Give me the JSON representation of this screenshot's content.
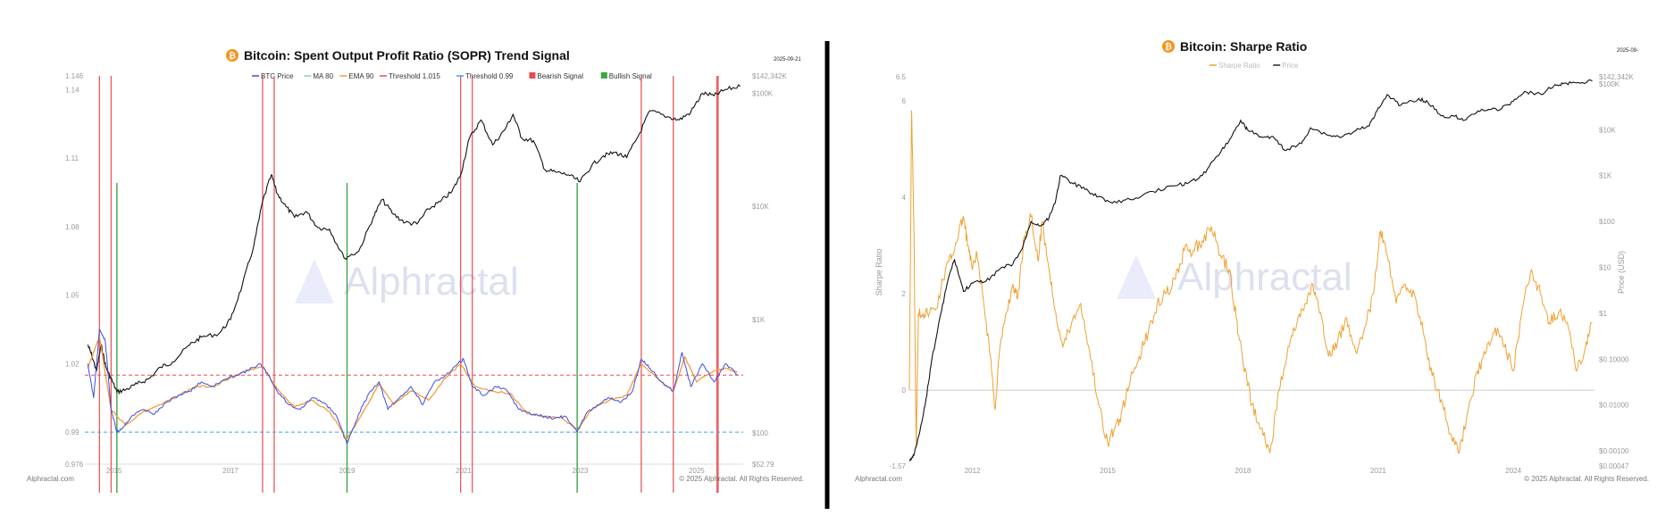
{
  "chart_data": [
    {
      "type": "line",
      "title": "Bitcoin: Spent Output Profit Ratio (SOPR) Trend Signal",
      "date_label": "2025-09-21",
      "legend": [
        {
          "label": "BTC Price",
          "color": "#3b4fe0",
          "kind": "line"
        },
        {
          "label": "MA 80",
          "color": "#7fd3c0",
          "kind": "line"
        },
        {
          "label": "EMA 90",
          "color": "#f59a3a",
          "kind": "line"
        },
        {
          "label": "Threshold 1.015",
          "color": "#ef4d4d",
          "kind": "line"
        },
        {
          "label": "Threshold 0.99",
          "color": "#3aa3e0",
          "kind": "line"
        },
        {
          "label": "Bearish Signal",
          "color": "#e84c4c",
          "kind": "box"
        },
        {
          "label": "Bullish Signal",
          "color": "#3aa64a",
          "kind": "box"
        }
      ],
      "x_range": [
        2014.5,
        2025.8
      ],
      "x_ticks": [
        {
          "v": 2015,
          "label": "2015"
        },
        {
          "v": 2017,
          "label": "2017"
        },
        {
          "v": 2019,
          "label": "2019"
        },
        {
          "v": 2021,
          "label": "2021"
        },
        {
          "v": 2023,
          "label": "2023"
        },
        {
          "v": 2025,
          "label": "2025"
        }
      ],
      "y_left_range": [
        0.976,
        1.146
      ],
      "y_left_ticks": [
        {
          "v": 1.146,
          "label": "1.146"
        },
        {
          "v": 1.14,
          "label": "1.14"
        },
        {
          "v": 1.11,
          "label": "1.11"
        },
        {
          "v": 1.08,
          "label": "1.08"
        },
        {
          "v": 1.05,
          "label": "1.05"
        },
        {
          "v": 1.02,
          "label": "1.02"
        },
        {
          "v": 0.99,
          "label": "0.99"
        },
        {
          "v": 0.976,
          "label": "0.976"
        }
      ],
      "y_right_log": true,
      "y_right_range": [
        52.79,
        142342
      ],
      "y_right_ticks": [
        {
          "v": 142342,
          "label": "$142,342K"
        },
        {
          "v": 100000,
          "label": "$100K"
        },
        {
          "v": 10000,
          "label": "$10K"
        },
        {
          "v": 1000,
          "label": "$1K"
        },
        {
          "v": 100,
          "label": "$100"
        },
        {
          "v": 52.79,
          "label": "$52.79"
        }
      ],
      "thresholds": [
        {
          "name": "Threshold 1.015",
          "value": 1.015,
          "color": "#ef4d4d"
        },
        {
          "name": "Threshold 0.99",
          "value": 0.99,
          "color": "#3aa3e0"
        }
      ],
      "bearish_signals": [
        2014.75,
        2014.95,
        2017.55,
        2017.75,
        2020.95,
        2021.15,
        2024.05,
        2024.6,
        2025.35,
        2025.37
      ],
      "bullish_signals": [
        2015.05,
        2019.0,
        2022.95
      ],
      "btc_price": {
        "x": [
          2014.55,
          2014.62,
          2014.7,
          2014.78,
          2014.86,
          2014.95,
          2015.05,
          2015.2,
          2015.4,
          2015.6,
          2015.8,
          2016.0,
          2016.3,
          2016.5,
          2016.8,
          2017.0,
          2017.2,
          2017.4,
          2017.55,
          2017.7,
          2017.8,
          2017.95,
          2018.1,
          2018.3,
          2018.5,
          2018.7,
          2018.95,
          2019.2,
          2019.45,
          2019.6,
          2019.8,
          2020.0,
          2020.2,
          2020.4,
          2020.6,
          2020.8,
          2020.95,
          2021.1,
          2021.3,
          2021.5,
          2021.7,
          2021.85,
          2022.0,
          2022.2,
          2022.4,
          2022.6,
          2022.8,
          2023.0,
          2023.2,
          2023.4,
          2023.6,
          2023.8,
          2024.0,
          2024.2,
          2024.5,
          2024.7,
          2024.9,
          2025.1,
          2025.3,
          2025.5,
          2025.75
        ],
        "y": [
          600,
          480,
          350,
          600,
          380,
          300,
          230,
          240,
          270,
          300,
          380,
          420,
          600,
          700,
          750,
          1000,
          2000,
          4500,
          11000,
          19000,
          13000,
          10000,
          8000,
          9000,
          6500,
          6300,
          3500,
          4000,
          8000,
          11500,
          8500,
          7200,
          7000,
          9500,
          11000,
          13500,
          19000,
          40000,
          58000,
          35000,
          47000,
          65000,
          40000,
          38000,
          21000,
          20000,
          19000,
          16500,
          23000,
          28000,
          30000,
          27000,
          42000,
          70000,
          62000,
          58000,
          68000,
          100000,
          95000,
          108000,
          115000
        ]
      },
      "sopr": {
        "x": [
          2014.55,
          2014.65,
          2014.75,
          2014.85,
          2014.95,
          2015.05,
          2015.15,
          2015.3,
          2015.5,
          2015.7,
          2015.9,
          2016.1,
          2016.3,
          2016.5,
          2016.7,
          2016.9,
          2017.1,
          2017.3,
          2017.5,
          2017.65,
          2017.8,
          2018.0,
          2018.2,
          2018.4,
          2018.6,
          2018.8,
          2019.0,
          2019.2,
          2019.4,
          2019.55,
          2019.7,
          2019.9,
          2020.1,
          2020.3,
          2020.5,
          2020.7,
          2020.9,
          2021.0,
          2021.15,
          2021.35,
          2021.55,
          2021.75,
          2021.95,
          2022.15,
          2022.35,
          2022.55,
          2022.75,
          2022.95,
          2023.1,
          2023.3,
          2023.5,
          2023.7,
          2023.9,
          2024.05,
          2024.2,
          2024.4,
          2024.6,
          2024.75,
          2024.9,
          2025.1,
          2025.3,
          2025.5,
          2025.7
        ],
        "y": [
          1.02,
          1.005,
          1.035,
          1.03,
          1.0,
          0.99,
          0.992,
          0.997,
          1.0,
          0.998,
          1.003,
          1.006,
          1.008,
          1.012,
          1.01,
          1.013,
          1.015,
          1.017,
          1.02,
          1.015,
          1.008,
          1.002,
          1.0,
          1.005,
          1.003,
          0.998,
          0.985,
          0.998,
          1.008,
          1.012,
          1.0,
          1.005,
          1.01,
          1.002,
          1.012,
          1.015,
          1.02,
          1.022,
          1.01,
          1.006,
          1.01,
          1.008,
          1.0,
          0.998,
          0.997,
          0.996,
          0.997,
          0.99,
          0.998,
          1.002,
          1.005,
          1.003,
          1.008,
          1.022,
          1.018,
          1.012,
          1.008,
          1.025,
          1.01,
          1.02,
          1.012,
          1.02,
          1.015
        ]
      },
      "ema90": {
        "x": [
          2014.55,
          2014.75,
          2014.95,
          2015.2,
          2015.5,
          2015.8,
          2016.1,
          2016.4,
          2016.7,
          2017.0,
          2017.3,
          2017.55,
          2017.8,
          2018.1,
          2018.4,
          2018.7,
          2019.0,
          2019.3,
          2019.55,
          2019.8,
          2020.1,
          2020.4,
          2020.7,
          2020.95,
          2021.2,
          2021.5,
          2021.8,
          2022.1,
          2022.4,
          2022.7,
          2022.95,
          2023.2,
          2023.5,
          2023.8,
          2024.05,
          2024.35,
          2024.6,
          2024.8,
          2025.0,
          2025.3,
          2025.5,
          2025.7
        ],
        "y": [
          1.018,
          1.032,
          1.0,
          0.993,
          0.999,
          1.002,
          1.006,
          1.01,
          1.01,
          1.014,
          1.017,
          1.019,
          1.009,
          1.001,
          1.004,
          0.999,
          0.987,
          1.0,
          1.011,
          1.002,
          1.008,
          1.004,
          1.014,
          1.02,
          1.01,
          1.008,
          1.007,
          0.998,
          0.997,
          0.996,
          0.991,
          1.0,
          1.004,
          1.006,
          1.02,
          1.013,
          1.008,
          1.023,
          1.012,
          1.017,
          1.018,
          1.016
        ]
      },
      "watermark": "Alphractal",
      "footer_left": "Alphractal.com",
      "footer_right": "© 2025 Alphractal. All Rights Reserved."
    },
    {
      "type": "line",
      "title": "Bitcoin: Sharpe Ratio",
      "date_label": "2025-09-",
      "legend": [
        {
          "label": "Sharpe Ratio",
          "color": "#f0a030",
          "kind": "line"
        },
        {
          "label": "Price",
          "color": "#222222",
          "kind": "line"
        }
      ],
      "ylabel_left": "Sharpe Ratio",
      "ylabel_right": "Price (USD)",
      "x_range": [
        2010.6,
        2025.8
      ],
      "x_ticks": [
        {
          "v": 2012,
          "label": "2012"
        },
        {
          "v": 2015,
          "label": "2015"
        },
        {
          "v": 2018,
          "label": "2018"
        },
        {
          "v": 2021,
          "label": "2021"
        },
        {
          "v": 2024,
          "label": "2024"
        }
      ],
      "y_left_range": [
        -1.57,
        6.5
      ],
      "y_left_ticks": [
        {
          "v": 6.5,
          "label": "6.5"
        },
        {
          "v": 6,
          "label": "6"
        },
        {
          "v": 4,
          "label": "4"
        },
        {
          "v": 2,
          "label": "2"
        },
        {
          "v": 0,
          "label": "0"
        },
        {
          "v": -1.57,
          "label": "-1.57"
        }
      ],
      "zero_line": 0,
      "y_right_log": true,
      "y_right_range": [
        0.00047,
        142342
      ],
      "y_right_ticks": [
        {
          "v": 142342,
          "label": "$142,342K"
        },
        {
          "v": 100000,
          "label": "$100K"
        },
        {
          "v": 10000,
          "label": "$10K"
        },
        {
          "v": 1000,
          "label": "$1K"
        },
        {
          "v": 100,
          "label": "$100"
        },
        {
          "v": 10,
          "label": "$10"
        },
        {
          "v": 1,
          "label": "$1"
        },
        {
          "v": 0.1,
          "label": "$0.10000"
        },
        {
          "v": 0.01,
          "label": "$0.01000"
        },
        {
          "v": 0.001,
          "label": "$0.00100"
        },
        {
          "v": 0.00047,
          "label": "$0.00047"
        }
      ],
      "sharpe": {
        "x": [
          2010.6,
          2010.65,
          2010.7,
          2010.75,
          2010.8,
          2010.9,
          2011.0,
          2011.2,
          2011.4,
          2011.55,
          2011.7,
          2011.8,
          2011.9,
          2012.0,
          2012.1,
          2012.25,
          2012.4,
          2012.5,
          2012.6,
          2012.75,
          2012.9,
          2013.0,
          2013.15,
          2013.3,
          2013.45,
          2013.55,
          2013.7,
          2013.85,
          2014.0,
          2014.2,
          2014.4,
          2014.6,
          2014.8,
          2015.0,
          2015.15,
          2015.3,
          2015.5,
          2015.7,
          2015.9,
          2016.1,
          2016.3,
          2016.5,
          2016.7,
          2016.9,
          2017.1,
          2017.3,
          2017.5,
          2017.7,
          2017.85,
          2018.0,
          2018.2,
          2018.4,
          2018.6,
          2018.8,
          2019.0,
          2019.2,
          2019.4,
          2019.55,
          2019.7,
          2019.9,
          2020.1,
          2020.3,
          2020.5,
          2020.7,
          2020.9,
          2021.05,
          2021.2,
          2021.4,
          2021.6,
          2021.8,
          2022.0,
          2022.2,
          2022.4,
          2022.6,
          2022.8,
          2023.0,
          2023.2,
          2023.4,
          2023.6,
          2023.8,
          2024.0,
          2024.2,
          2024.4,
          2024.6,
          2024.8,
          2025.0,
          2025.2,
          2025.4,
          2025.6,
          2025.75
        ],
        "y": [
          0.0,
          5.8,
          3.5,
          -1.2,
          1.6,
          1.6,
          1.6,
          1.7,
          2.5,
          2.8,
          3.3,
          3.6,
          3.0,
          2.5,
          2.8,
          1.8,
          0.7,
          -0.4,
          0.8,
          1.6,
          2.2,
          1.9,
          3.2,
          3.6,
          2.7,
          3.5,
          2.5,
          1.6,
          0.9,
          1.4,
          1.8,
          0.8,
          -0.3,
          -1.1,
          -0.8,
          -0.5,
          0.2,
          0.7,
          1.2,
          1.8,
          2.0,
          2.3,
          2.9,
          2.9,
          3.1,
          3.4,
          2.8,
          2.5,
          1.5,
          0.6,
          -0.3,
          -0.8,
          -1.3,
          0.0,
          0.9,
          1.4,
          1.8,
          2.2,
          1.6,
          0.7,
          1.0,
          1.5,
          0.8,
          1.3,
          2.0,
          3.3,
          2.8,
          1.8,
          2.2,
          2.0,
          1.2,
          0.3,
          -0.2,
          -0.9,
          -1.3,
          -0.4,
          0.4,
          0.8,
          1.3,
          0.9,
          0.4,
          1.7,
          2.5,
          2.0,
          1.4,
          1.6,
          1.4,
          0.4,
          0.9,
          1.4
        ]
      },
      "price": {
        "x": [
          2010.6,
          2010.7,
          2010.8,
          2010.95,
          2011.1,
          2011.3,
          2011.45,
          2011.6,
          2011.8,
          2012.0,
          2012.3,
          2012.6,
          2012.9,
          2013.1,
          2013.3,
          2013.5,
          2013.7,
          2013.85,
          2013.95,
          2014.2,
          2014.5,
          2014.8,
          2015.1,
          2015.5,
          2016.0,
          2016.5,
          2016.8,
          2017.1,
          2017.4,
          2017.7,
          2017.95,
          2018.1,
          2018.4,
          2018.7,
          2018.95,
          2019.3,
          2019.5,
          2019.9,
          2020.2,
          2020.5,
          2020.8,
          2021.0,
          2021.2,
          2021.5,
          2021.9,
          2022.1,
          2022.4,
          2022.7,
          2022.95,
          2023.3,
          2023.7,
          2024.0,
          2024.25,
          2024.6,
          2024.9,
          2025.1,
          2025.4,
          2025.75
        ],
        "y": [
          0.0006,
          0.0008,
          0.002,
          0.01,
          0.1,
          1,
          5,
          15,
          3,
          4.5,
          5,
          9,
          12,
          25,
          100,
          80,
          120,
          300,
          1000,
          700,
          500,
          350,
          250,
          300,
          450,
          600,
          700,
          1000,
          2500,
          6000,
          16000,
          10000,
          7000,
          6500,
          3500,
          5000,
          11000,
          7500,
          7000,
          9500,
          12000,
          30000,
          58000,
          34000,
          48000,
          40000,
          20000,
          19500,
          16500,
          28000,
          27000,
          42000,
          68000,
          60000,
          90000,
          100000,
          105000,
          115000
        ]
      },
      "watermark": "Alphractal",
      "footer_left": "Alphractal.com",
      "footer_right": "© 2025 Alphractal. All Rights Reserved."
    }
  ]
}
